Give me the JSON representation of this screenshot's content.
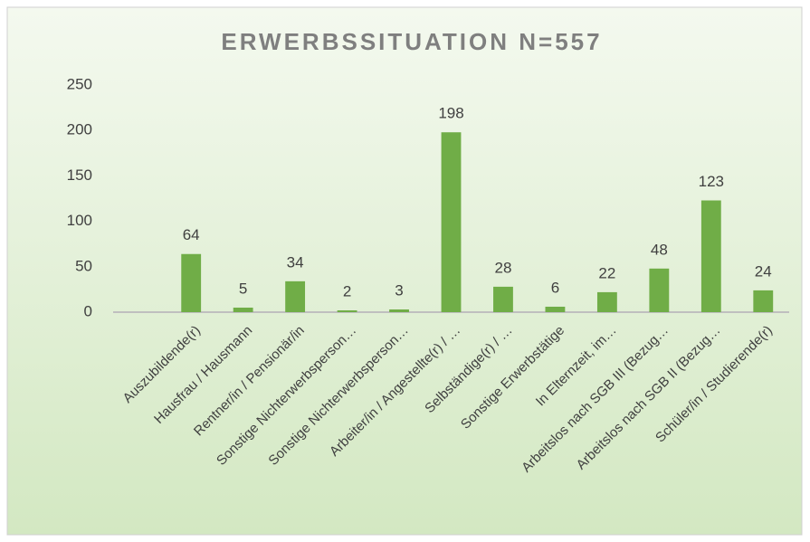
{
  "chart_data": {
    "type": "bar",
    "title": "ERWERBSSITUATION N=557",
    "categories": [
      null,
      "Auszubildende(r)",
      "Hausfrau / Hausmann",
      "Rentner/in / Pensionär/in",
      "Sonstige Nichterwerbsperson…",
      "Sonstige Nichterwerbsperson…",
      "Arbeiter/in / Angestellte(r) / …",
      "Selbständige(r) / …",
      "Sonstige Erwerbstätige",
      "In Elternzeit, im…",
      "Arbeitslos nach SGB III (Bezug…",
      "Arbeitslos nach SGB II (Bezug…",
      "Schüler/in / Studierende(r)"
    ],
    "values": [
      null,
      64,
      5,
      34,
      2,
      3,
      198,
      28,
      6,
      22,
      48,
      123,
      24
    ],
    "color": "#70ad47",
    "ylim": [
      0,
      250
    ],
    "yticks": [
      0,
      50,
      100,
      150,
      200,
      250
    ],
    "grid": false
  }
}
